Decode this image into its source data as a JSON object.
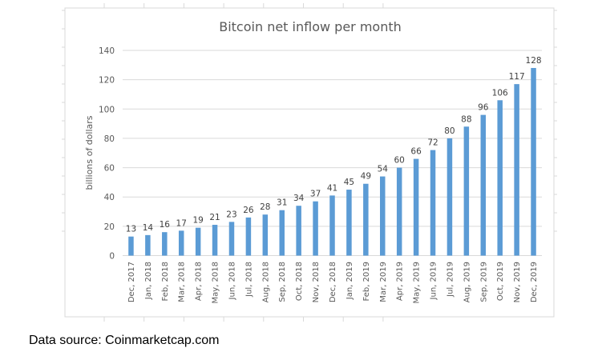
{
  "chart_data": {
    "type": "bar",
    "title": "Bitcoin net inflow per month",
    "xlabel": "",
    "ylabel": "billions of dollars",
    "ylim": [
      0,
      140
    ],
    "yticks": [
      0,
      20,
      40,
      60,
      80,
      100,
      120,
      140
    ],
    "grid": true,
    "legend": "none",
    "bar_color": "#5B9BD5",
    "categories": [
      "Dec, 2017",
      "Jan, 2018",
      "Feb, 2018",
      "Mar, 2018",
      "Apr, 2018",
      "May, 2018",
      "Jun, 2018",
      "Jul, 2018",
      "Aug, 2018",
      "Sep, 2018",
      "Oct, 2018",
      "Nov, 2018",
      "Dec, 2018",
      "Jan, 2019",
      "Feb, 2019",
      "Mar, 2019",
      "Apr, 2019",
      "May, 2019",
      "Jun, 2019",
      "Jul, 2019",
      "Aug, 2019",
      "Sep, 2019",
      "Oct, 2019",
      "Nov, 2019",
      "Dec, 2019"
    ],
    "values": [
      13,
      14,
      16,
      17,
      19,
      21,
      23,
      26,
      28,
      31,
      34,
      37,
      41,
      45,
      49,
      54,
      60,
      66,
      72,
      80,
      88,
      96,
      106,
      117,
      128
    ]
  },
  "footer": {
    "source_text": "Data source: Coinmarketcap.com"
  }
}
